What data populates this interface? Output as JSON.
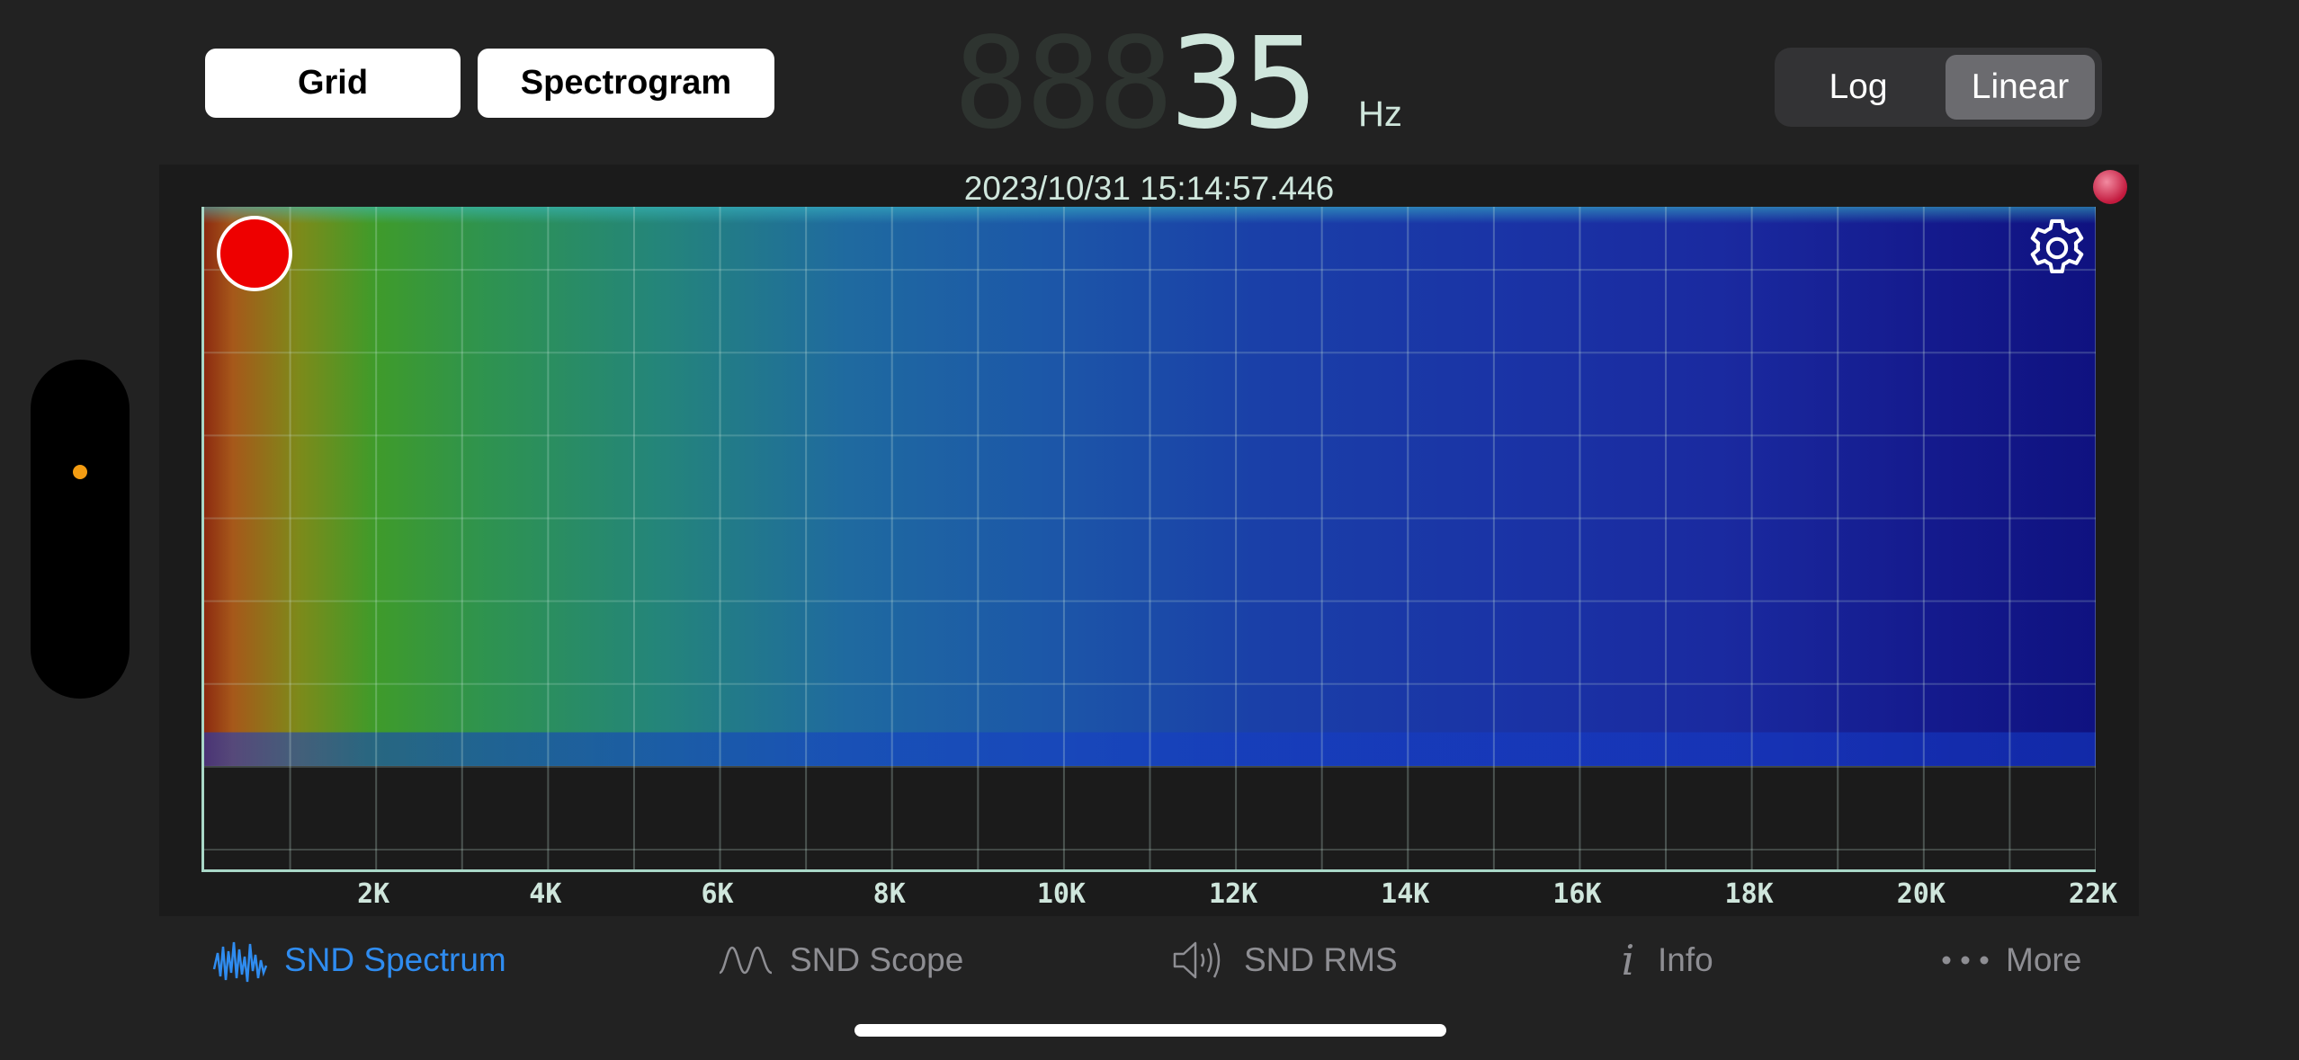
{
  "toolbar": {
    "grid_label": "Grid",
    "spectrogram_label": "Spectrogram"
  },
  "frequency": {
    "ghost_digits": "888",
    "value": "35",
    "unit": "Hz"
  },
  "scale_toggle": {
    "options": [
      "Log",
      "Linear"
    ],
    "selected": "Linear"
  },
  "spectrogram": {
    "timestamp": "2023/10/31 15:14:57.446",
    "x_ticks": [
      "2K",
      "4K",
      "6K",
      "8K",
      "10K",
      "12K",
      "14K",
      "16K",
      "18K",
      "20K",
      "22K"
    ],
    "x_range_hz": [
      0,
      22000
    ]
  },
  "tabs": [
    {
      "label": "SND Spectrum",
      "icon": "spectrum-icon",
      "active": true
    },
    {
      "label": "SND Scope",
      "icon": "scope-wave-icon",
      "active": false
    },
    {
      "label": "SND RMS",
      "icon": "speaker-icon",
      "active": false
    },
    {
      "label": "Info",
      "icon": "info-icon",
      "active": false
    },
    {
      "label": "More",
      "icon": "more-dots-icon",
      "active": false
    }
  ],
  "colors": {
    "accent": "#2f8cf0",
    "lcd": "#cfe6dc",
    "record": "#ee0000"
  }
}
